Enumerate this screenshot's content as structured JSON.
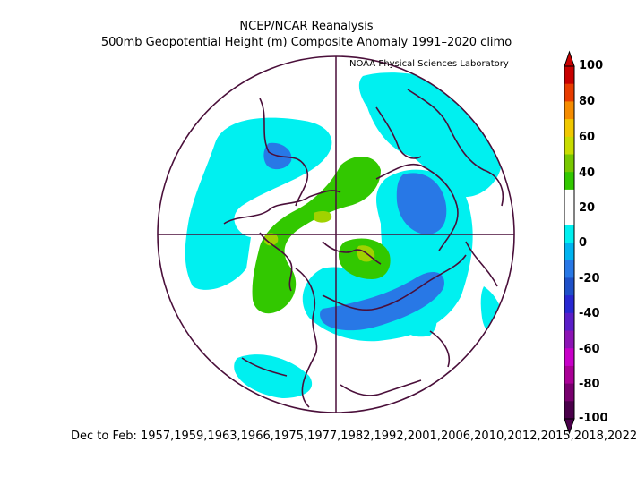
{
  "header": {
    "title_line1": "NCEP/NCAR Reanalysis",
    "title_line2": "500mb Geopotential Height (m) Composite Anomaly 1991–2020 climo",
    "credit": "NOAA Physical Sciences Laboratory"
  },
  "footer": {
    "text": "Dec to Feb: 1957,1959,1963,1966,1975,1977,1982,1992,2001,2006,2010,2012,2015,2018,2022"
  },
  "colorbar": {
    "labels": [
      "100",
      "80",
      "60",
      "40",
      "20",
      "0",
      "-20",
      "-40",
      "-60",
      "-80",
      "-100"
    ],
    "colors": [
      "#c80000",
      "#e83c00",
      "#f58c00",
      "#f0c800",
      "#c8dc00",
      "#78c800",
      "#32c800",
      "#ffffff",
      "#ffffff",
      "#00f0f0",
      "#00b4f0",
      "#2878e6",
      "#1e50c8",
      "#2828d2",
      "#5a1ec8",
      "#8c14b4",
      "#c800c8",
      "#aa0096",
      "#78006e",
      "#4a004a"
    ]
  },
  "map": {
    "projection": "north-polar-stereographic",
    "legend_placement": "right",
    "colors": {
      "coast": "#4a0f3a",
      "positive_light": "#32c800",
      "positive_mid": "#a0d200",
      "negative_light": "#00f0f0",
      "negative_mid": "#2878e6"
    }
  }
}
